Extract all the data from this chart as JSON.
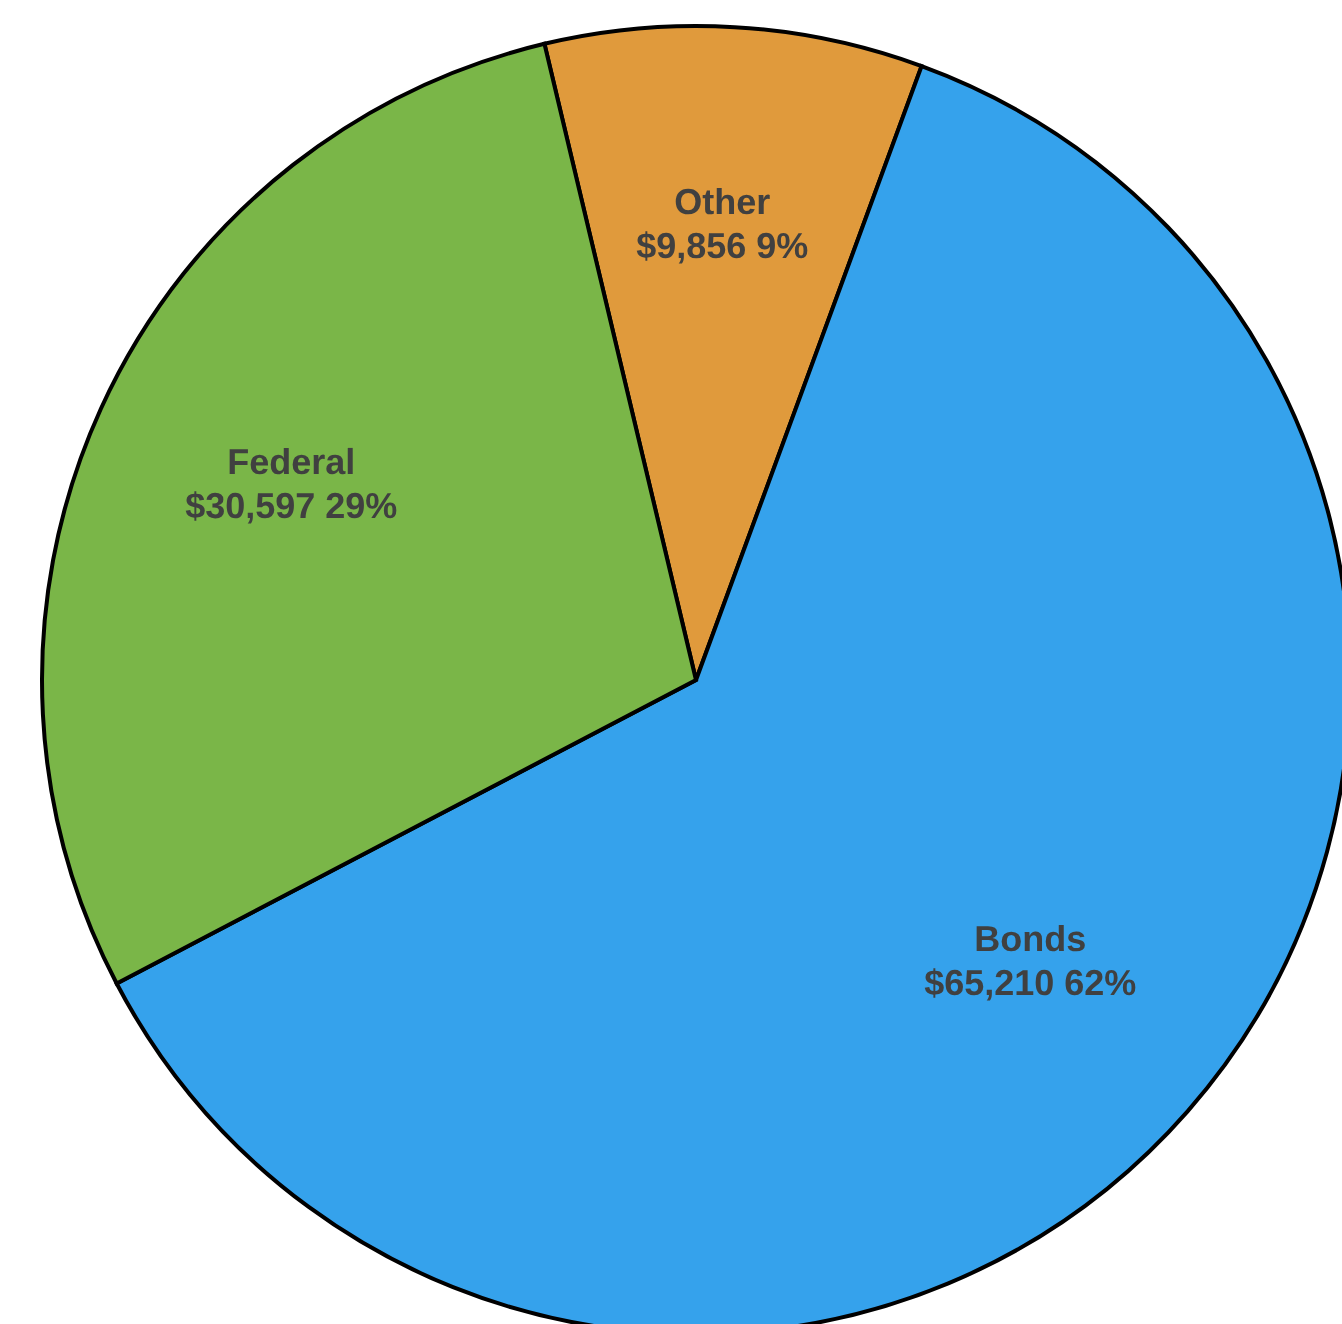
{
  "chart_data": {
    "type": "pie",
    "categories": [
      "Other",
      "Bonds",
      "Federal"
    ],
    "values": [
      9856,
      65210,
      30597
    ],
    "colors": [
      "#e09a3c",
      "#35a2ec",
      "#7ab648"
    ],
    "value_labels": [
      "$9,856 9%",
      "$65,210 62%",
      "$30,597 29%"
    ],
    "legend": false
  }
}
